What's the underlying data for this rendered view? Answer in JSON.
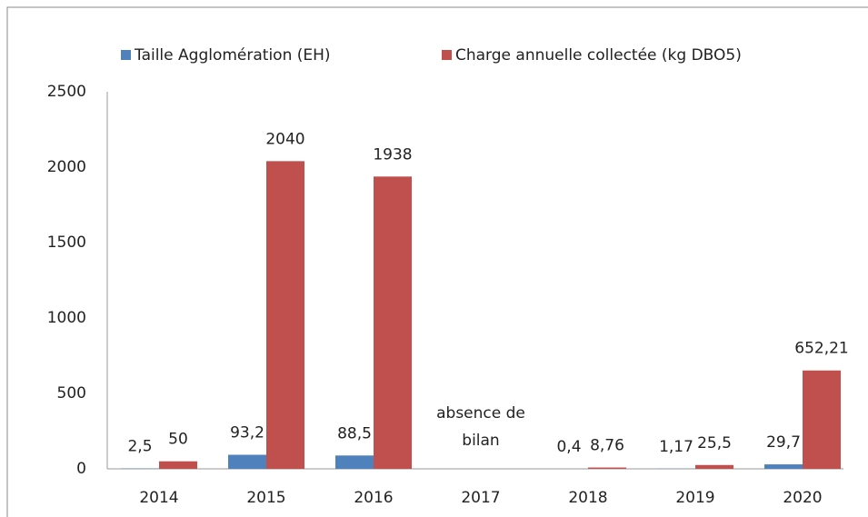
{
  "chart_data": {
    "type": "bar",
    "categories": [
      "2014",
      "2015",
      "2016",
      "2017",
      "2018",
      "2019",
      "2020"
    ],
    "series": [
      {
        "name": "Taille Agglomération  (EH)",
        "color": "#4f81bd",
        "values": [
          2.5,
          93.2,
          88.5,
          null,
          0.4,
          1.17,
          29.7
        ],
        "value_labels": [
          "2,5",
          "93,2",
          "88,5",
          null,
          "0,4",
          "1,17",
          "29,7"
        ]
      },
      {
        "name": "Charge annuelle collectée (kg DBO5)",
        "color": "#c0504d",
        "values": [
          50,
          2040,
          1938,
          null,
          8.76,
          25.5,
          652.21
        ],
        "value_labels": [
          "50",
          "2040",
          "1938",
          null,
          "8,76",
          "25,5",
          "652,21"
        ]
      }
    ],
    "annotations": [
      {
        "text": "absence de bilan",
        "category": "2017"
      }
    ],
    "ylim": [
      0,
      2500
    ],
    "yticks": [
      0,
      500,
      1000,
      1500,
      2000,
      2500
    ],
    "grid": false,
    "legend": "top"
  }
}
